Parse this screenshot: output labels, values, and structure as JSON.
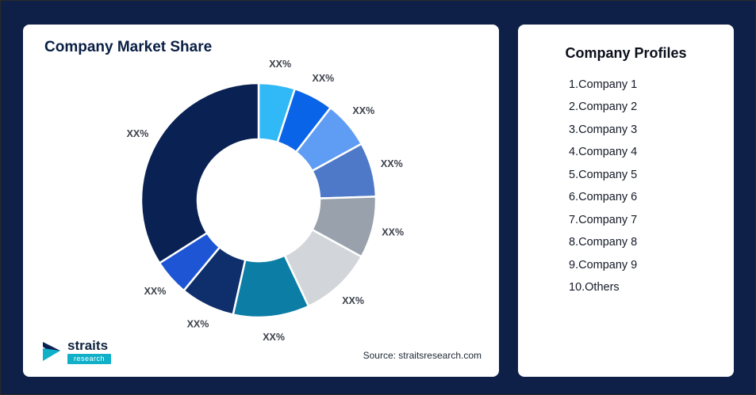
{
  "page": {
    "background": "#0e2048"
  },
  "chart_card": {
    "title": "Company Market Share",
    "source": "Source: straitsresearch.com"
  },
  "logo": {
    "brand": "straits",
    "sub": "research",
    "icon": "straits-arrow-icon",
    "teal": "#10b0c8",
    "navy": "#0a2155"
  },
  "chart_data": {
    "type": "pie",
    "subtype": "donut",
    "title": "Company Market Share",
    "direction": "clockwise",
    "start_angle_deg": 0,
    "inner_radius_ratio": 0.52,
    "labels": [
      "XX%",
      "XX%",
      "XX%",
      "XX%",
      "XX%",
      "XX%",
      "XX%",
      "XX%",
      "XX%",
      "XX%"
    ],
    "segments": [
      "Company 1",
      "Company 2",
      "Company 3",
      "Company 4",
      "Company 5",
      "Company 6",
      "Company 7",
      "Company 8",
      "Company 9",
      "Others"
    ],
    "values": [
      5,
      5.5,
      6.5,
      7.5,
      8.5,
      10,
      10.5,
      7.5,
      5,
      34
    ],
    "colors": [
      "#30b9f6",
      "#0a64e8",
      "#5f9cf4",
      "#4e79c9",
      "#98a1ac",
      "#d2d6da",
      "#0c7ea6",
      "#0e2f6b",
      "#1d55d4",
      "#0a2153"
    ],
    "legend_position": "none"
  },
  "profiles_card": {
    "title": "Company Profiles",
    "items": [
      "1.Company 1",
      "2.Company 2",
      "3.Company 3",
      "4.Company 4",
      "5.Company 5",
      "6.Company 6",
      "7.Company 7",
      "8.Company 8",
      "9.Company 9",
      "10.Others"
    ]
  }
}
